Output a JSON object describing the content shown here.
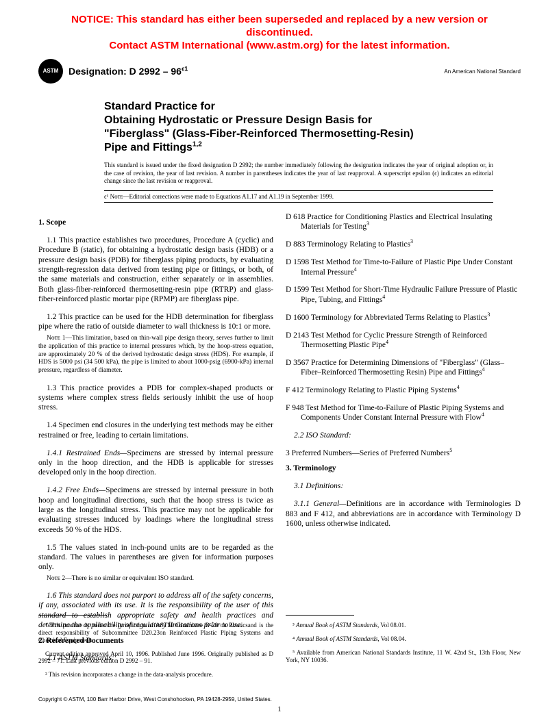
{
  "notice": {
    "line1": "NOTICE: This standard has either been superseded and replaced by a new version or discontinued.",
    "line2": "Contact ASTM International (www.astm.org) for the latest information."
  },
  "header": {
    "logo_text": "ASTM",
    "designation_label": "Designation: D 2992 – 96",
    "designation_sup": "ϵ1",
    "right_text": "An American National Standard"
  },
  "title": {
    "line1": "Standard Practice for",
    "line2": "Obtaining Hydrostatic or Pressure Design Basis for",
    "line3": "\"Fiberglass\" (Glass-Fiber-Reinforced Thermosetting-Resin)",
    "line4": "Pipe and Fittings",
    "sup": "1,2"
  },
  "issued": "This standard is issued under the fixed designation D 2992; the number immediately following the designation indicates the year of original adoption or, in the case of revision, the year of last revision. A number in parentheses indicates the year of last reapproval. A superscript epsilon (ϵ) indicates an editorial change since the last revision or reapproval.",
  "eps_note_prefix": "ϵ¹ Nᴏᴛᴇ—",
  "eps_note": "Editorial corrections were made to Equations A1.17 and A1.19 in September 1999.",
  "sections": {
    "scope_head": "1. Scope",
    "p11": "1.1 This practice establishes two procedures, Procedure A (cyclic) and Procedure B (static), for obtaining a hydrostatic design basis (HDB) or a pressure design basis (PDB) for fiberglass piping products, by evaluating strength-regression data derived from testing pipe or fittings, or both, of the same materials and construction, either separately or in assemblies. Both glass-fiber-reinforced thermosetting-resin pipe (RTRP) and glass-fiber-reinforced plastic mortar pipe (RPMP) are fiberglass pipe.",
    "p12": "1.2 This practice can be used for the HDB determination for fiberglass pipe where the ratio of outside diameter to wall thickness is 10:1 or more.",
    "note1_prefix": "Nᴏᴛᴇ 1—",
    "note1": "This limitation, based on thin-wall pipe design theory, serves further to limit the application of this practice to internal pressures which, by the hoop-stress equation, are approximately 20 % of the derived hydrostatic design stress (HDS). For example, if HDS is 5000 psi (34 500 kPa), the pipe is limited to about 1000-psig (6900-kPa) internal pressure, regardless of diameter.",
    "p13": "1.3 This practice provides a PDB for complex-shaped products or systems where complex stress fields seriously inhibit the use of hoop stress.",
    "p14": "1.4 Specimen end closures in the underlying test methods may be either restrained or free, leading to certain limitations.",
    "p141_head": "1.4.1 Restrained Ends—",
    "p141": "Specimens are stressed by internal pressure only in the hoop direction, and the HDB is applicable for stresses developed only in the hoop direction.",
    "p142_head": "1.4.2 Free Ends—",
    "p142": "Specimens are stressed by internal pressure in both hoop and longitudinal directions, such that the hoop stress is twice as large as the longitudinal stress. This practice may not be applicable for evaluating stresses induced by loadings where the longitudinal stress exceeds 50 % of the HDS.",
    "p15": "1.5 The values stated in inch-pound units are to be regarded as the standard. The values in parentheses are given for information purposes only.",
    "note2_prefix": "Nᴏᴛᴇ 2—",
    "note2": "There is no similar or equivalent ISO standard.",
    "p16": "1.6 This standard does not purport to address all of the safety concerns, if any, associated with its use. It is the responsibility of the user of this standard to establish appropriate safety and health practices and determine the applicability of regulatory limitations prior to use.",
    "refdocs_head": "2. Referenced Documents",
    "p21": "2.1 ASTM Standards:",
    "refs": [
      {
        "id": "D 618",
        "txt": "Practice for Conditioning Plastics and Electrical Insulating Materials for Testing",
        "sup": "3"
      },
      {
        "id": "D 883",
        "txt": "Terminology Relating to Plastics",
        "sup": "3"
      },
      {
        "id": "D 1598",
        "txt": "Test Method for Time-to-Failure of Plastic Pipe Under Constant Internal Pressure",
        "sup": "4"
      },
      {
        "id": "D 1599",
        "txt": "Test Method for Short-Time Hydraulic Failure Pressure of Plastic Pipe, Tubing, and Fittings",
        "sup": "4"
      },
      {
        "id": "D 1600",
        "txt": "Terminology for Abbreviated Terms Relating to Plastics",
        "sup": "3"
      },
      {
        "id": "D 2143",
        "txt": "Test Method for Cyclic Pressure Strength of Reinforced Thermosetting Plastic Pipe",
        "sup": "4"
      },
      {
        "id": "D 3567",
        "txt": "Practice for Determining Dimensions of \"Fiberglass\" (Glass–Fiber–Reinforced Thermosetting Resin) Pipe and Fittings",
        "sup": "4"
      },
      {
        "id": "F 412",
        "txt": "Terminology Relating to Plastic Piping Systems",
        "sup": "4"
      },
      {
        "id": "F 948",
        "txt": "Test Method for Time-to-Failure of Plastic Piping Systems and Components Under Constant Internal Pressure with Flow",
        "sup": "4"
      }
    ],
    "p22": "2.2 ISO Standard:",
    "iso": "3  Preferred Numbers—Series of Preferred Numbers",
    "iso_sup": "5",
    "term_head": "3. Terminology",
    "p31": "3.1 Definitions:",
    "p311_head": "3.1.1 General—",
    "p311": "Definitions are in accordance with Terminologies D 883 and F 412, and abbreviations are in accordance with Terminology D 1600, unless otherwise indicated."
  },
  "footnotes": {
    "left": [
      "¹ This practice is under the jurisdiction of ASTM Committee D-20 on Plasticsand is the direct responsibility of Subcommittee D20.23on Reinforced Plastic Piping Systems and Chemical Equipment.",
      "Current edition approved April 10, 1996. Published June 1996. Originally published as D 2992 – 71. Last previous edition D 2992 – 91.",
      "² This revision incorporates a change in the data-analysis procedure."
    ],
    "right": [
      "³ Annual Book of ASTM Standards, Vol 08.01.",
      "⁴ Annual Book of ASTM Standards, Vol 08.04.",
      "⁵ Available from American National Standards Institute, 11 W. 42nd St., 13th Floor, New York, NY 10036."
    ]
  },
  "copyright": "Copyright © ASTM, 100 Barr Harbor Drive, West Conshohocken, PA 19428-2959, United States.",
  "pagenum": "1"
}
